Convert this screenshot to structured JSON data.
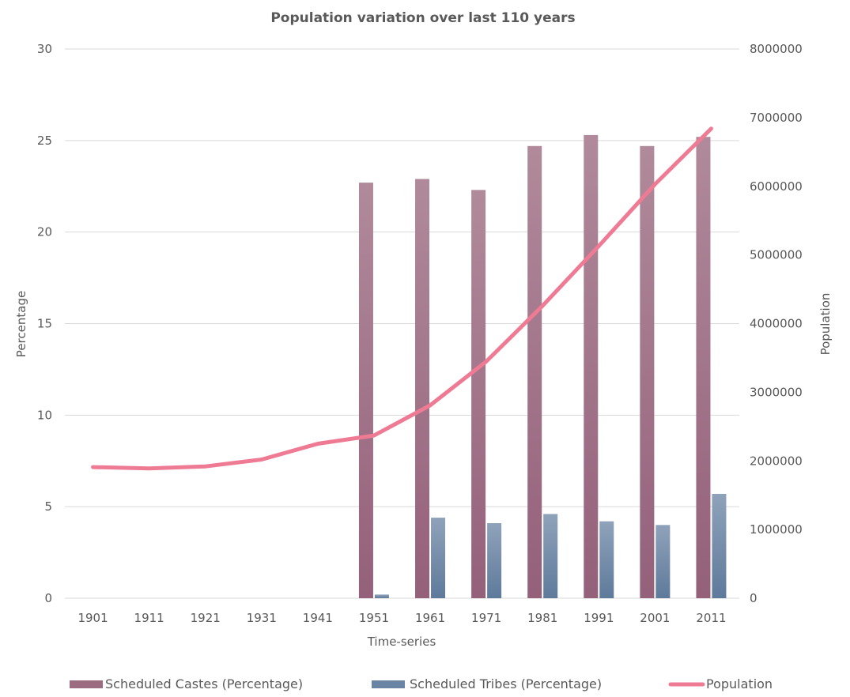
{
  "chart_data": {
    "type": "bar",
    "title": "Population variation over last 110 years",
    "xlabel": "Time-series",
    "ylabel": "Percentage",
    "y2label": "Population",
    "categories": [
      "1901",
      "1911",
      "1921",
      "1931",
      "1941",
      "1951",
      "1961",
      "1971",
      "1981",
      "1991",
      "2001",
      "2011"
    ],
    "ylim": [
      0,
      30
    ],
    "yticks": [
      "0",
      "5",
      "10",
      "15",
      "20",
      "25",
      "30"
    ],
    "y2lim": [
      0,
      8000000
    ],
    "y2ticks": [
      "0",
      "1000000",
      "2000000",
      "3000000",
      "4000000",
      "5000000",
      "6000000",
      "7000000",
      "8000000"
    ],
    "grid": true,
    "legend_position": "bottom",
    "series": [
      {
        "name": "Scheduled Castes (Percentage)",
        "type": "bar",
        "axis": "left",
        "color": "#9b6b80",
        "values": [
          null,
          null,
          null,
          null,
          null,
          22.7,
          22.9,
          22.3,
          24.7,
          25.3,
          24.7,
          25.2
        ]
      },
      {
        "name": "Scheduled Tribes (Percentage)",
        "type": "bar",
        "axis": "left",
        "color": "#6a84a3",
        "values": [
          null,
          null,
          null,
          null,
          null,
          0.2,
          4.4,
          4.1,
          4.6,
          4.2,
          4.0,
          5.7
        ]
      },
      {
        "name": "Population",
        "type": "line",
        "axis": "right",
        "color": "#ef7a94",
        "values": [
          1910000,
          1890000,
          1920000,
          2020000,
          2250000,
          2370000,
          2810000,
          3450000,
          4260000,
          5130000,
          6030000,
          6840000
        ]
      }
    ]
  }
}
